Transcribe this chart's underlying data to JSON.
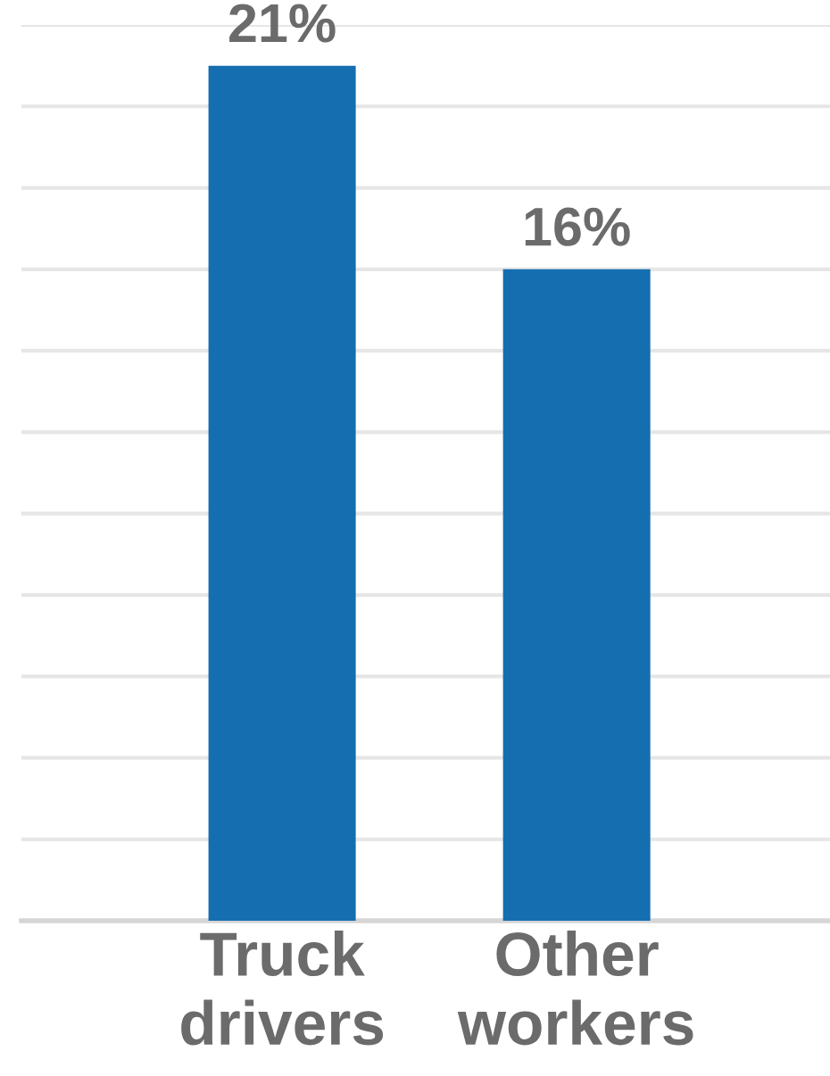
{
  "chart_data": {
    "type": "bar",
    "categories": [
      "Truck\ndrivers",
      "Other\nworkers"
    ],
    "values": [
      21,
      16
    ],
    "value_labels": [
      "21%",
      "16%"
    ],
    "color": "#156eb0",
    "ylim": [
      0,
      22
    ],
    "yticks": [
      {
        "value": 0,
        "label": null
      },
      {
        "value": 2,
        "label": null
      },
      {
        "value": 4,
        "label": null
      },
      {
        "value": 6,
        "label": null
      },
      {
        "value": 8,
        "label": null
      },
      {
        "value": 10,
        "label": null
      },
      {
        "value": 12,
        "label": null
      },
      {
        "value": 14,
        "label": null
      },
      {
        "value": 16,
        "label": null
      },
      {
        "value": 18,
        "label": null
      },
      {
        "value": 20,
        "label": null
      },
      {
        "value": 22,
        "label": null
      }
    ],
    "grid": "y",
    "tick_labels": "x"
  }
}
